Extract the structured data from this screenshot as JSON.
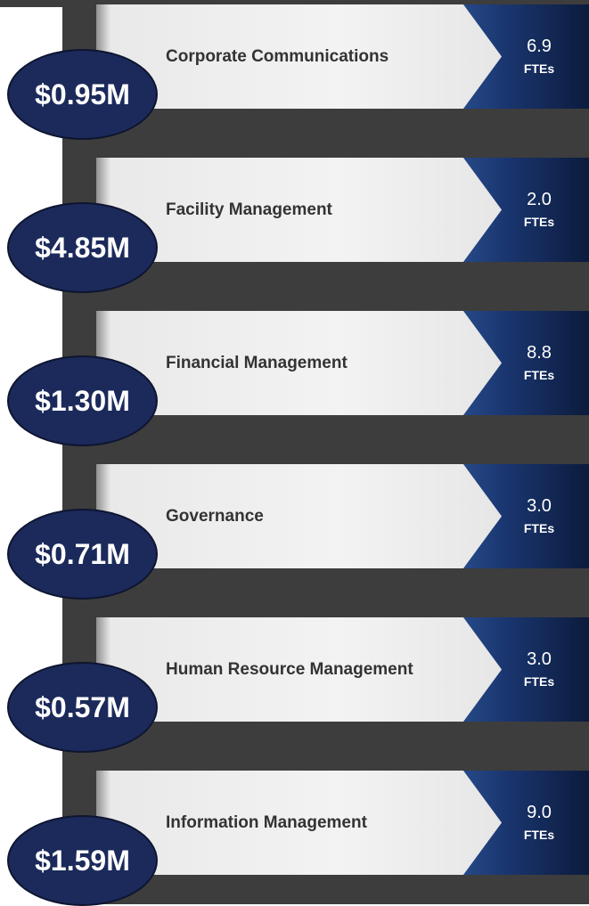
{
  "fte_unit": "FTEs",
  "items": [
    {
      "label": "Corporate Communications",
      "cost": "$0.95M",
      "ftes": "6.9"
    },
    {
      "label": "Facility Management",
      "cost": "$4.85M",
      "ftes": "2.0"
    },
    {
      "label": "Financial Management",
      "cost": "$1.30M",
      "ftes": "8.8"
    },
    {
      "label": "Governance",
      "cost": "$0.71M",
      "ftes": "3.0"
    },
    {
      "label": "Human Resource Management",
      "cost": "$0.57M",
      "ftes": "3.0"
    },
    {
      "label": "Information Management",
      "cost": "$1.59M",
      "ftes": "9.0"
    }
  ]
}
